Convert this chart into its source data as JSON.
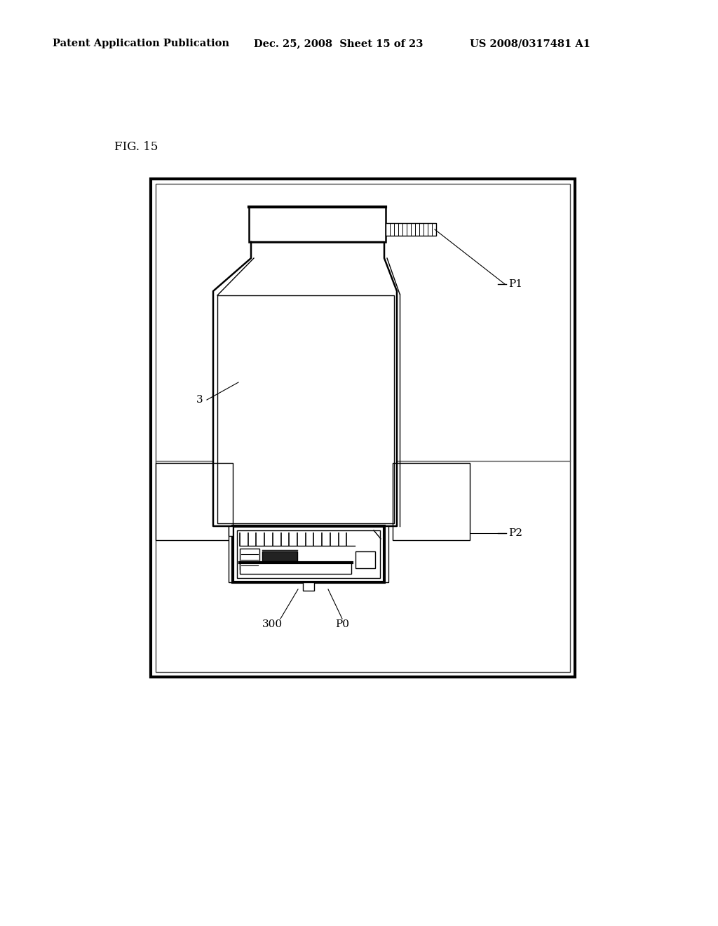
{
  "title_left": "Patent Application Publication",
  "title_mid": "Dec. 25, 2008  Sheet 15 of 23",
  "title_right": "US 2008/0317481 A1",
  "fig_label": "FIG. 15",
  "bg_color": "#ffffff",
  "line_color": "#000000",
  "header_fontsize": 10.5,
  "fig_label_fontsize": 12,
  "annotation_fontsize": 11,
  "p1_label": "P1",
  "p2_label": "P2",
  "p0_label": "P0",
  "label_3": "3",
  "label_300": "300"
}
